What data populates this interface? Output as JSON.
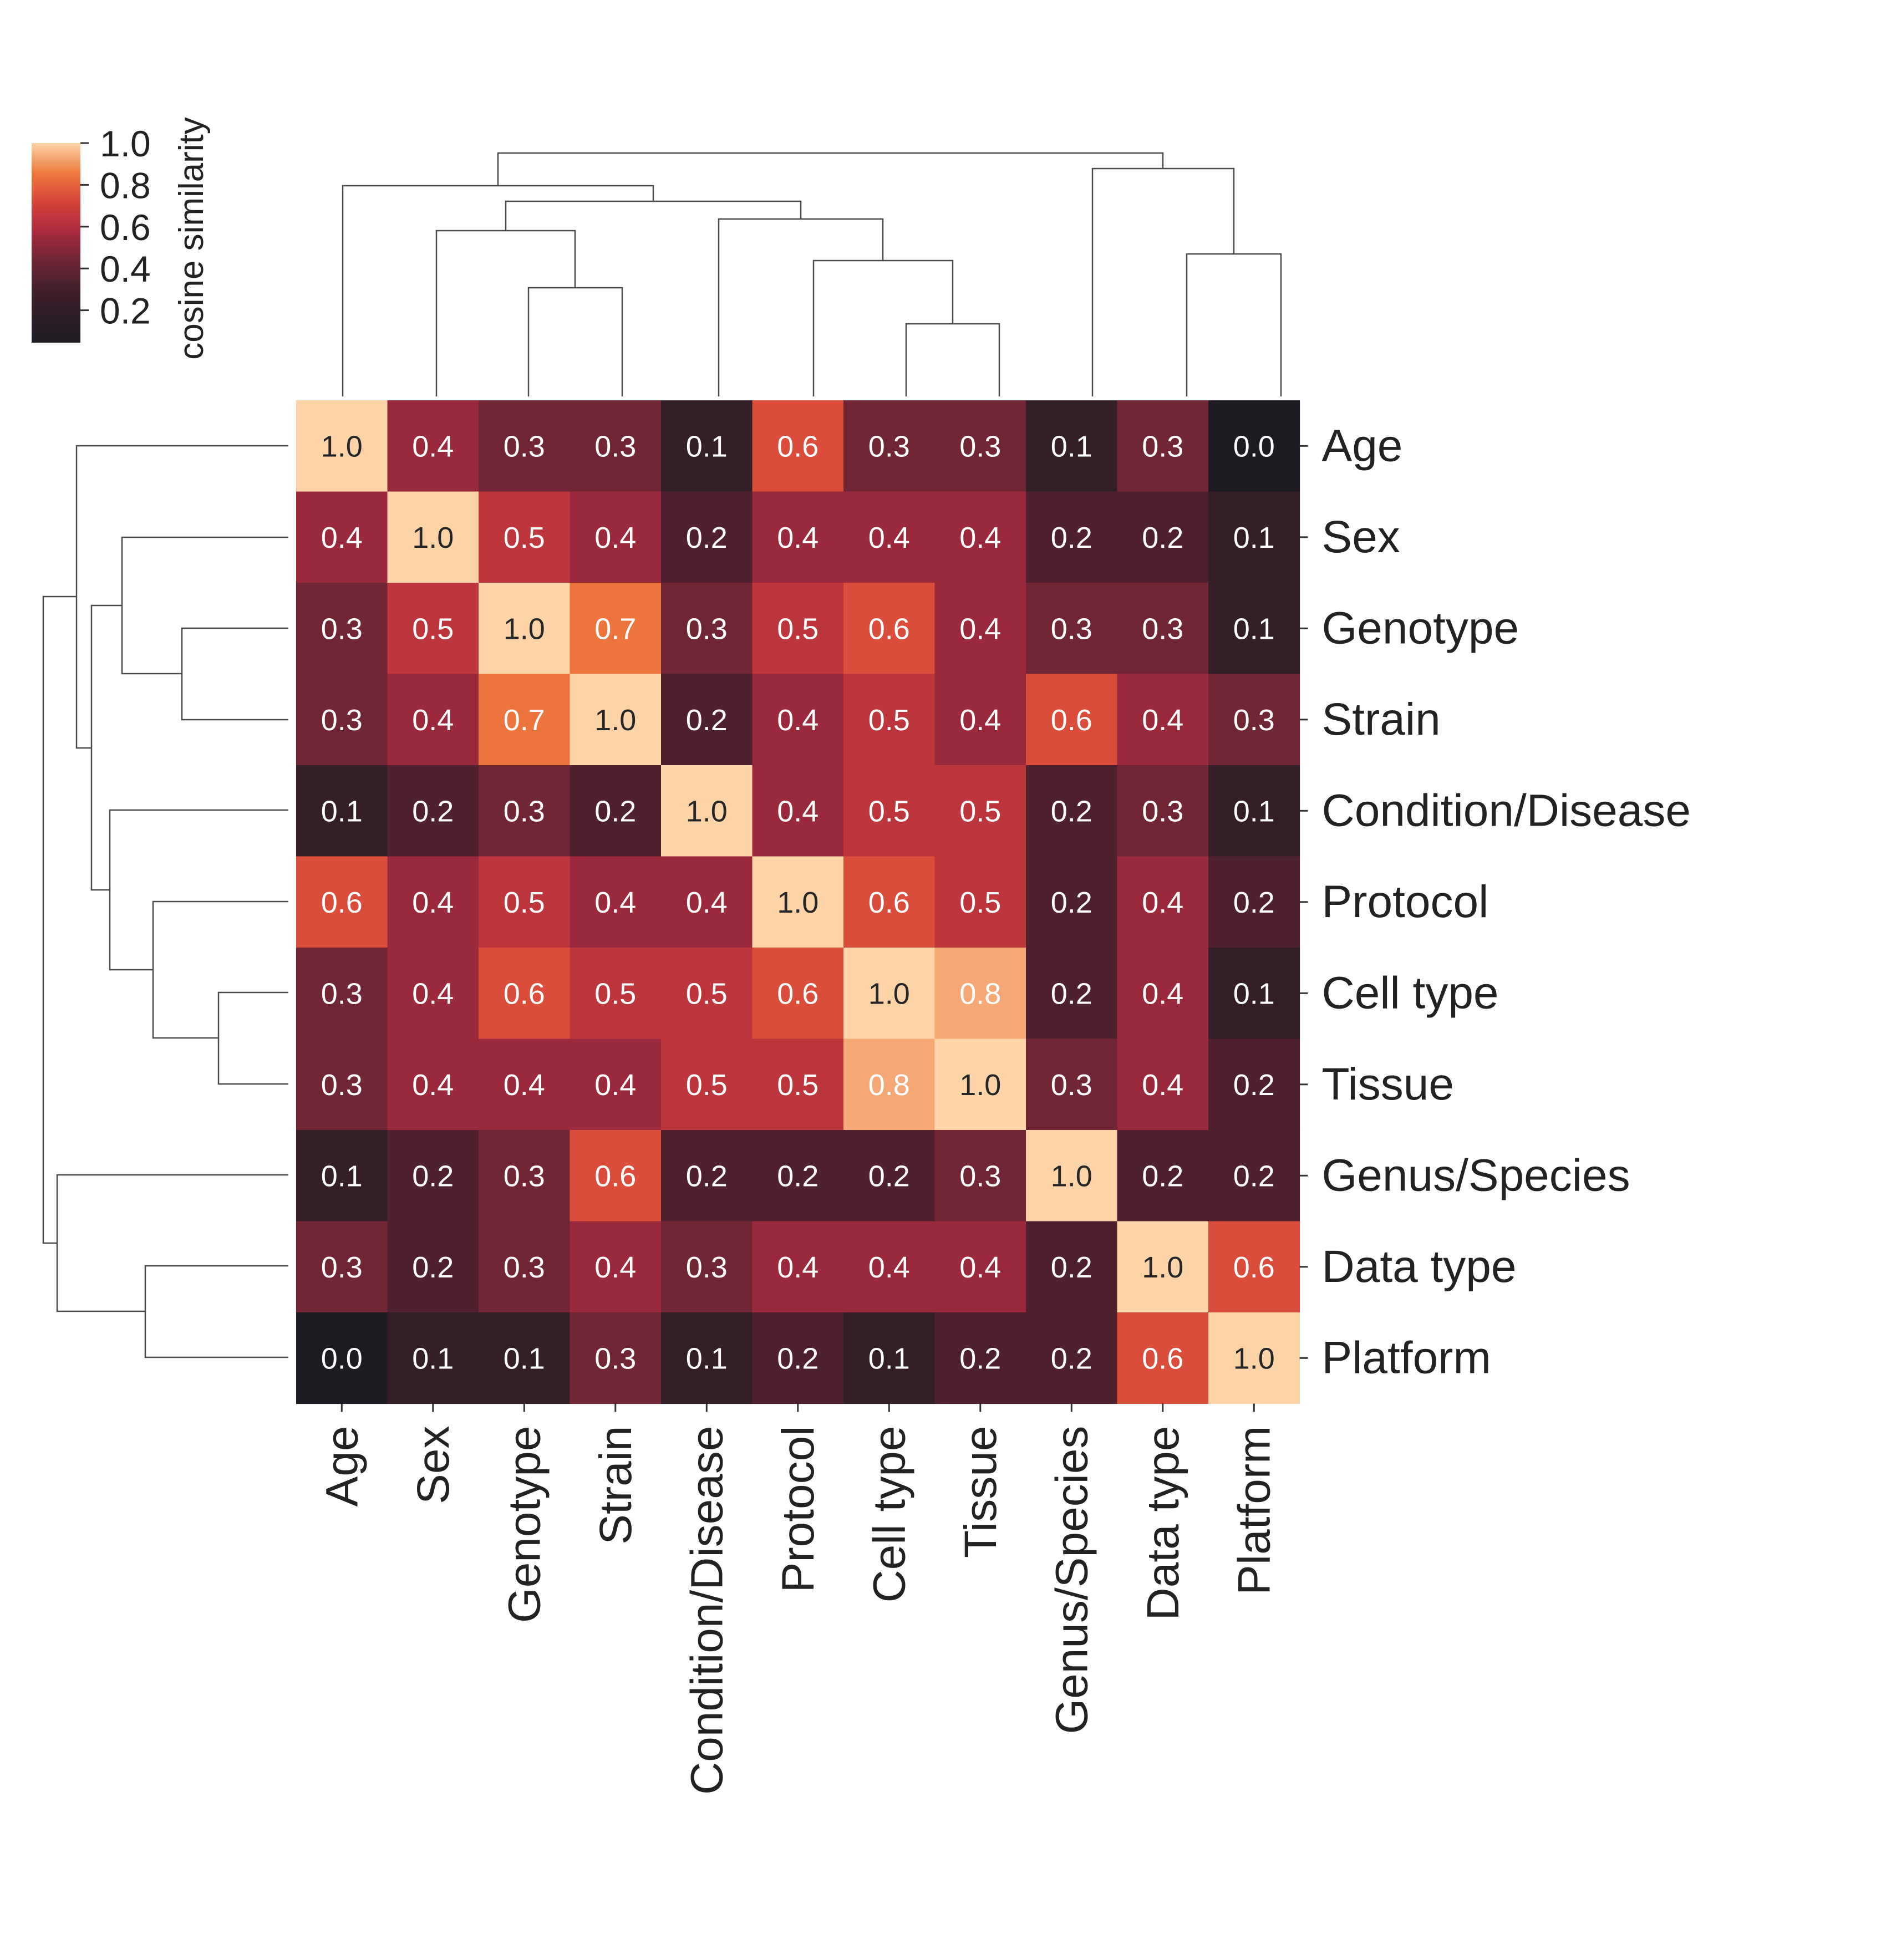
{
  "chart_data": {
    "type": "heatmap",
    "labels": [
      "Age",
      "Sex",
      "Genotype",
      "Strain",
      "Condition/Disease",
      "Protocol",
      "Cell type",
      "Tissue",
      "Genus/Species",
      "Data type",
      "Platform"
    ],
    "values": [
      [
        1.0,
        0.4,
        0.3,
        0.3,
        0.1,
        0.6,
        0.3,
        0.3,
        0.1,
        0.3,
        0.0
      ],
      [
        0.4,
        1.0,
        0.5,
        0.4,
        0.2,
        0.4,
        0.4,
        0.4,
        0.2,
        0.2,
        0.1
      ],
      [
        0.3,
        0.5,
        1.0,
        0.7,
        0.3,
        0.5,
        0.6,
        0.4,
        0.3,
        0.3,
        0.1
      ],
      [
        0.3,
        0.4,
        0.7,
        1.0,
        0.2,
        0.4,
        0.5,
        0.4,
        0.6,
        0.4,
        0.3
      ],
      [
        0.1,
        0.2,
        0.3,
        0.2,
        1.0,
        0.4,
        0.5,
        0.5,
        0.2,
        0.3,
        0.1
      ],
      [
        0.6,
        0.4,
        0.5,
        0.4,
        0.4,
        1.0,
        0.6,
        0.5,
        0.2,
        0.4,
        0.2
      ],
      [
        0.3,
        0.4,
        0.6,
        0.5,
        0.5,
        0.6,
        1.0,
        0.8,
        0.2,
        0.4,
        0.1
      ],
      [
        0.3,
        0.4,
        0.4,
        0.4,
        0.5,
        0.5,
        0.8,
        1.0,
        0.3,
        0.4,
        0.2
      ],
      [
        0.1,
        0.2,
        0.3,
        0.6,
        0.2,
        0.2,
        0.2,
        0.3,
        1.0,
        0.2,
        0.2
      ],
      [
        0.3,
        0.2,
        0.3,
        0.4,
        0.3,
        0.4,
        0.4,
        0.4,
        0.2,
        1.0,
        0.6
      ],
      [
        0.0,
        0.1,
        0.1,
        0.3,
        0.1,
        0.2,
        0.1,
        0.2,
        0.2,
        0.6,
        1.0
      ]
    ],
    "value_range": [
      0.0,
      1.0
    ],
    "colorbar": {
      "label": "cosine similarity",
      "ticks": [
        1.0,
        0.8,
        0.6,
        0.4,
        0.2
      ],
      "tick_labels": [
        "1.0",
        "0.8",
        "0.6",
        "0.4",
        "0.2"
      ]
    },
    "colormap": [
      "#1e1b22",
      "#3d1f2a",
      "#6b2535",
      "#a52a3d",
      "#d5413a",
      "#ee7b3e",
      "#fbc59b",
      "#fdd3a8"
    ],
    "annotations_shown": true,
    "dendrogram": {
      "placement": "top and left",
      "merges": [
        [
          "Cell type",
          "Tissue"
        ],
        [
          "Genotype",
          "Strain"
        ],
        [
          "Data type",
          "Platform"
        ],
        [
          "Protocol",
          "Cell type + Tissue"
        ],
        [
          "Sex",
          "Genotype + Strain"
        ],
        [
          "Condition/Disease",
          "Protocol + Cell type + Tissue"
        ],
        [
          "Sex + Genotype + Strain",
          "Condition/Disease + Protocol + Cell type + Tissue"
        ],
        [
          "Genus/Species",
          "Data type + Platform"
        ],
        [
          "Age",
          "Sex + Genotype + Strain + Condition/Disease + Protocol + Cell type + Tissue"
        ],
        [
          "all eight",
          "Genus/Species + Data type + Platform"
        ]
      ]
    }
  }
}
